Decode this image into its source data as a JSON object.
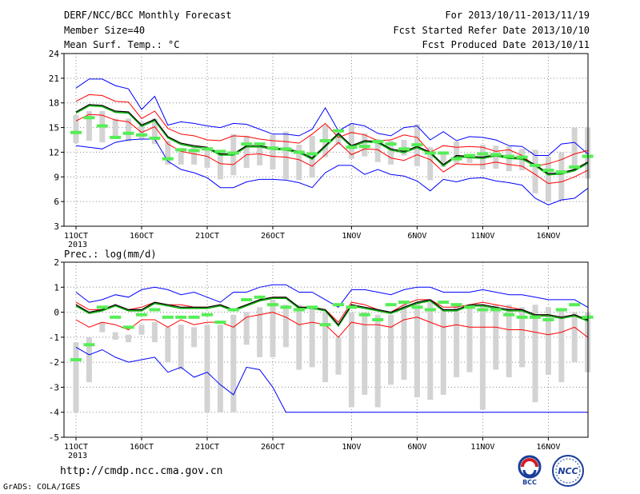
{
  "header": {
    "title": "DERF/NCC/BCC Monthly Forecast",
    "member_size": "Member Size=40",
    "variable_top": "Mean Surf. Temp.: °C",
    "for_period": "For 2013/10/11-2013/11/19",
    "fcst_started": "Fcst Started Refer Date 2013/10/10",
    "fcst_produced": "Fcst Produced Date 2013/10/11"
  },
  "footer": {
    "url": "http://cmdp.ncc.cma.gov.cn",
    "credit": "GrADS: COLA/IGES",
    "logo_bcc": "BCC",
    "logo_ncc": "NCC"
  },
  "colors": {
    "envelope": "#0000ff",
    "spread": "#ff0000",
    "mean": "#000000",
    "mean_shadow": "#00aa00",
    "bar": "#d3d3d3",
    "obs": "#55ee55",
    "grid": "#888888"
  },
  "chart_data": [
    {
      "type": "line",
      "title": "Mean Surf. Temp.: °C",
      "x_start": "2013-10-11",
      "x_tick_labels": [
        "11OCT\n2013",
        "16OCT",
        "21OCT",
        "26OCT",
        "1NOV",
        "6NOV",
        "11NOV",
        "16NOV"
      ],
      "ylim": [
        3,
        24
      ],
      "yticks": [
        3,
        6,
        9,
        12,
        15,
        18,
        21,
        24
      ],
      "grid": true,
      "series": [
        {
          "name": "max",
          "values": [
            19.8,
            20.9,
            20.9,
            20.1,
            19.7,
            17.2,
            18.8,
            15.3,
            15.7,
            15.5,
            15.2,
            15.0,
            15.5,
            15.4,
            14.8,
            14.2,
            14.2,
            14.0,
            14.8,
            17.4,
            14.6,
            15.5,
            15.2,
            14.3,
            14.0,
            15.0,
            15.2,
            13.5,
            14.5,
            13.4,
            13.9,
            13.8,
            13.5,
            12.8,
            12.7,
            11.6,
            11.6,
            13.0,
            13.2,
            11.8
          ]
        },
        {
          "name": "upper",
          "values": [
            18.2,
            19.0,
            18.9,
            18.2,
            18.1,
            16.1,
            17.0,
            14.9,
            14.2,
            14.0,
            13.5,
            13.4,
            14.0,
            13.9,
            13.6,
            13.4,
            13.3,
            13.1,
            14.2,
            15.5,
            13.8,
            14.4,
            14.1,
            13.4,
            13.5,
            14.1,
            13.8,
            12.0,
            12.8,
            12.6,
            12.7,
            12.6,
            12.1,
            12.3,
            11.6,
            10.3,
            10.6,
            11.1,
            11.8,
            12.2
          ]
        },
        {
          "name": "mean",
          "values": [
            16.9,
            17.8,
            17.7,
            17.0,
            16.9,
            15.3,
            16.0,
            13.9,
            13.1,
            12.8,
            12.6,
            11.8,
            11.8,
            12.8,
            12.8,
            12.5,
            12.4,
            12.1,
            11.3,
            12.8,
            14.3,
            12.8,
            13.4,
            13.3,
            12.4,
            12.1,
            12.7,
            12.0,
            10.5,
            11.6,
            11.5,
            11.4,
            11.7,
            11.4,
            11.3,
            10.5,
            9.4,
            9.5,
            9.9,
            10.8
          ]
        },
        {
          "name": "lower",
          "values": [
            15.8,
            16.6,
            16.5,
            15.9,
            15.7,
            14.4,
            15.1,
            13.0,
            12.1,
            11.8,
            11.5,
            10.6,
            10.5,
            11.7,
            11.8,
            11.5,
            11.4,
            11.1,
            10.3,
            11.7,
            13.2,
            11.7,
            12.4,
            12.3,
            11.3,
            11.0,
            11.7,
            11.1,
            9.6,
            10.6,
            10.5,
            10.5,
            10.8,
            10.5,
            10.3,
            9.3,
            8.2,
            8.4,
            9.0,
            9.8
          ]
        },
        {
          "name": "min",
          "values": [
            12.8,
            12.6,
            12.4,
            13.2,
            13.5,
            13.6,
            13.6,
            10.9,
            9.9,
            9.5,
            8.9,
            7.7,
            7.7,
            8.4,
            8.7,
            8.7,
            8.6,
            8.3,
            7.7,
            9.5,
            10.4,
            10.4,
            9.3,
            9.9,
            9.3,
            9.1,
            8.5,
            7.3,
            8.7,
            8.4,
            8.8,
            8.9,
            8.5,
            8.3,
            8.0,
            6.4,
            5.6,
            6.2,
            6.4,
            7.6
          ]
        },
        {
          "name": "box_top",
          "values": [
            16.5,
            17.0,
            17.0,
            16.1,
            16.1,
            15.7,
            16.1,
            13.4,
            12.4,
            12.6,
            12.4,
            12.0,
            14.2,
            14.0,
            12.9,
            14.1,
            14.5,
            12.9,
            14.0,
            15.3,
            14.4,
            15.5,
            14.3,
            13.6,
            13.4,
            13.5,
            15.4,
            12.6,
            12.1,
            13.3,
            11.8,
            12.9,
            12.8,
            12.7,
            12.4,
            12.3,
            11.5,
            12.0,
            15.0,
            15.0
          ]
        },
        {
          "name": "box_bottom",
          "values": [
            13.1,
            13.4,
            13.2,
            13.6,
            13.3,
            13.6,
            13.0,
            10.5,
            10.5,
            10.5,
            10.1,
            8.7,
            9.2,
            10.1,
            10.4,
            9.9,
            8.7,
            8.6,
            8.9,
            11.4,
            12.9,
            11.2,
            11.5,
            10.8,
            10.5,
            11.6,
            10.3,
            8.6,
            10.2,
            10.6,
            10.7,
            9.9,
            10.0,
            9.7,
            9.8,
            7.0,
            6.0,
            6.1,
            9.9,
            8.8
          ]
        },
        {
          "name": "observed",
          "values": [
            14.4,
            16.2,
            15.2,
            13.8,
            14.3,
            14.1,
            13.7,
            11.2,
            12.3,
            12.2,
            12.4,
            12.1,
            11.9,
            13.0,
            13.0,
            12.5,
            12.4,
            12.0,
            11.8,
            13.4,
            14.6,
            12.6,
            12.7,
            13.3,
            13.0,
            12.4,
            12.9,
            11.9,
            11.9,
            11.2,
            11.6,
            11.8,
            11.7,
            11.5,
            11.4,
            10.4,
            9.8,
            9.6,
            10.2,
            11.5
          ]
        }
      ]
    },
    {
      "type": "line",
      "title": "Prec.: log(mm/d)",
      "x_start": "2013-10-11",
      "x_tick_labels": [
        "11OCT\n2013",
        "16OCT",
        "21OCT",
        "26OCT",
        "1NOV",
        "6NOV",
        "11NOV",
        "16NOV"
      ],
      "ylim": [
        -5,
        2
      ],
      "yticks": [
        -5,
        -4,
        -3,
        -2,
        -1,
        0,
        1,
        2
      ],
      "grid": true,
      "series": [
        {
          "name": "max",
          "values": [
            0.8,
            0.4,
            0.5,
            0.7,
            0.6,
            0.9,
            1.0,
            0.9,
            0.7,
            0.8,
            0.6,
            0.4,
            0.8,
            0.8,
            1.0,
            1.1,
            1.1,
            0.8,
            0.8,
            0.5,
            0.2,
            0.9,
            0.9,
            0.8,
            0.7,
            0.9,
            1.0,
            1.0,
            0.8,
            0.8,
            0.8,
            0.9,
            0.8,
            0.7,
            0.7,
            0.6,
            0.5,
            0.5,
            0.5,
            0.2
          ]
        },
        {
          "name": "upper",
          "values": [
            0.4,
            0.1,
            0.1,
            0.3,
            0.1,
            0.2,
            0.4,
            0.3,
            0.3,
            0.2,
            0.2,
            0.3,
            0.1,
            0.3,
            0.5,
            0.6,
            0.6,
            0.2,
            0.2,
            0.1,
            -0.4,
            0.4,
            0.3,
            0.1,
            0.0,
            0.3,
            0.5,
            0.5,
            0.2,
            0.2,
            0.3,
            0.4,
            0.3,
            0.2,
            0.1,
            -0.1,
            -0.1,
            -0.2,
            -0.1,
            -0.3
          ]
        },
        {
          "name": "mean",
          "values": [
            0.3,
            0.0,
            0.1,
            0.3,
            0.1,
            0.1,
            0.4,
            0.3,
            0.2,
            0.2,
            0.2,
            0.3,
            0.1,
            0.3,
            0.5,
            0.6,
            0.6,
            0.2,
            0.2,
            0.1,
            -0.5,
            0.3,
            0.2,
            0.1,
            0.0,
            0.2,
            0.4,
            0.5,
            0.1,
            0.1,
            0.3,
            0.3,
            0.2,
            0.1,
            0.1,
            -0.1,
            -0.1,
            -0.2,
            -0.1,
            -0.3
          ]
        },
        {
          "name": "lower",
          "values": [
            -0.3,
            -0.6,
            -0.4,
            -0.5,
            -0.7,
            -0.3,
            -0.3,
            -0.6,
            -0.3,
            -0.5,
            -0.4,
            -0.4,
            -0.6,
            -0.2,
            -0.1,
            0.0,
            -0.2,
            -0.5,
            -0.4,
            -0.5,
            -1.0,
            -0.4,
            -0.5,
            -0.5,
            -0.6,
            -0.3,
            -0.2,
            -0.4,
            -0.6,
            -0.5,
            -0.6,
            -0.6,
            -0.6,
            -0.7,
            -0.7,
            -0.8,
            -0.9,
            -0.8,
            -0.6,
            -1.0
          ]
        },
        {
          "name": "min",
          "values": [
            -1.4,
            -1.7,
            -1.5,
            -1.8,
            -2.0,
            -1.9,
            -1.8,
            -2.4,
            -2.2,
            -2.6,
            -2.4,
            -2.9,
            -3.3,
            -2.2,
            -2.3,
            -3.0,
            -4.0,
            -4.0,
            -4.0,
            -4.0,
            -4.0,
            -4.0,
            -4.0,
            -4.0,
            -4.0,
            -4.0,
            -4.0,
            -4.0,
            -4.0,
            -4.0,
            -4.0,
            -4.0,
            -4.0,
            -4.0,
            -4.0,
            -4.0,
            -4.0,
            -4.0,
            -4.0,
            -4.0
          ]
        },
        {
          "name": "box_top",
          "values": [
            -1.2,
            -1.0,
            -0.4,
            -0.8,
            -0.9,
            -0.5,
            -0.4,
            -0.6,
            -0.5,
            -0.6,
            -0.5,
            -0.5,
            -0.1,
            0.0,
            0.2,
            0.5,
            0.3,
            0.3,
            0.2,
            0.0,
            -1.0,
            0.0,
            0.0,
            -0.1,
            -0.1,
            0.3,
            0.4,
            0.4,
            0.1,
            0.3,
            0.3,
            0.3,
            0.3,
            0.3,
            0.2,
            0.3,
            0.2,
            0.1,
            0.0,
            0.0
          ]
        },
        {
          "name": "box_bottom",
          "values": [
            -4.0,
            -2.8,
            -0.8,
            -1.1,
            -1.2,
            -0.9,
            -1.2,
            -2.0,
            -2.3,
            -1.4,
            -4.0,
            -4.0,
            -4.0,
            -1.3,
            -1.8,
            -1.8,
            -1.4,
            -2.3,
            -2.2,
            -2.8,
            -2.5,
            -3.8,
            -3.3,
            -3.8,
            -2.9,
            -2.7,
            -3.4,
            -3.5,
            -3.3,
            -2.6,
            -2.4,
            -3.9,
            -2.3,
            -2.6,
            -2.2,
            -3.6,
            -2.5,
            -2.8,
            -2.0,
            -2.4
          ]
        },
        {
          "name": "observed",
          "values": [
            -1.9,
            -1.3,
            0.2,
            -0.2,
            -0.6,
            -0.1,
            0.1,
            -0.2,
            -0.2,
            -0.2,
            -0.1,
            -0.4,
            0.1,
            0.5,
            0.6,
            0.3,
            0.2,
            0.1,
            0.2,
            -0.5,
            0.3,
            0.2,
            -0.1,
            -0.3,
            0.3,
            0.4,
            0.2,
            0.1,
            0.4,
            0.3,
            0.2,
            0.1,
            0.1,
            -0.1,
            -0.2,
            -0.2,
            -0.3,
            0.1,
            0.3,
            -0.2
          ]
        }
      ]
    }
  ]
}
